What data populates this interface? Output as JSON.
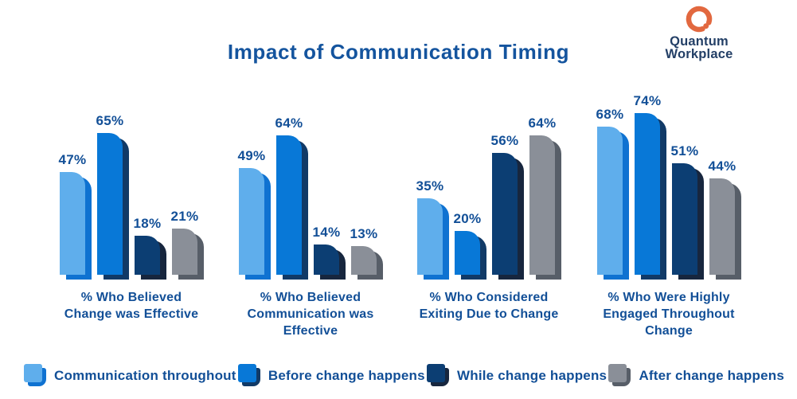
{
  "page": {
    "background": "#FFFFFF"
  },
  "title": {
    "text": "Impact of Communication Timing",
    "color": "#14549E"
  },
  "logo": {
    "brand_line1": "Quantum",
    "brand_line2": "Workplace",
    "icon": "quantum-q-icon",
    "icon_color": "#E2683F",
    "text_color": "#233F66"
  },
  "chart_data": {
    "type": "bar",
    "title": "Impact of Communication Timing",
    "categories": [
      "% Who Believed Change was Effective",
      "% Who Believed Communication was Effective",
      "% Who Considered Exiting Due to Change",
      "% Who Were Highly Engaged Throughout Change"
    ],
    "category_lines": [
      [
        "% Who Believed",
        "Change was Effective"
      ],
      [
        "% Who Believed",
        "Communication was",
        "Effective"
      ],
      [
        "% Who Considered",
        "Exiting Due to Change"
      ],
      [
        "% Who Were Highly",
        "Engaged Throughout",
        "Change"
      ]
    ],
    "series": [
      {
        "name": "Communication throughout",
        "color": "#5FAEEC",
        "shadow_color": "#0F72D1",
        "values": [
          47,
          49,
          35,
          68
        ]
      },
      {
        "name": "Before change happens",
        "color": "#0878D7",
        "shadow_color": "#113A67",
        "values": [
          65,
          64,
          20,
          74
        ]
      },
      {
        "name": "While change happens",
        "color": "#0C3E73",
        "shadow_color": "#17263E",
        "values": [
          18,
          14,
          56,
          51
        ]
      },
      {
        "name": "After change happens",
        "color": "#8A8F98",
        "shadow_color": "#575E68",
        "values": [
          21,
          13,
          64,
          44
        ]
      }
    ],
    "value_suffix": "%",
    "ylim": [
      0,
      80
    ],
    "grid": false,
    "legend_position": "bottom",
    "label_color": "#124F97"
  }
}
